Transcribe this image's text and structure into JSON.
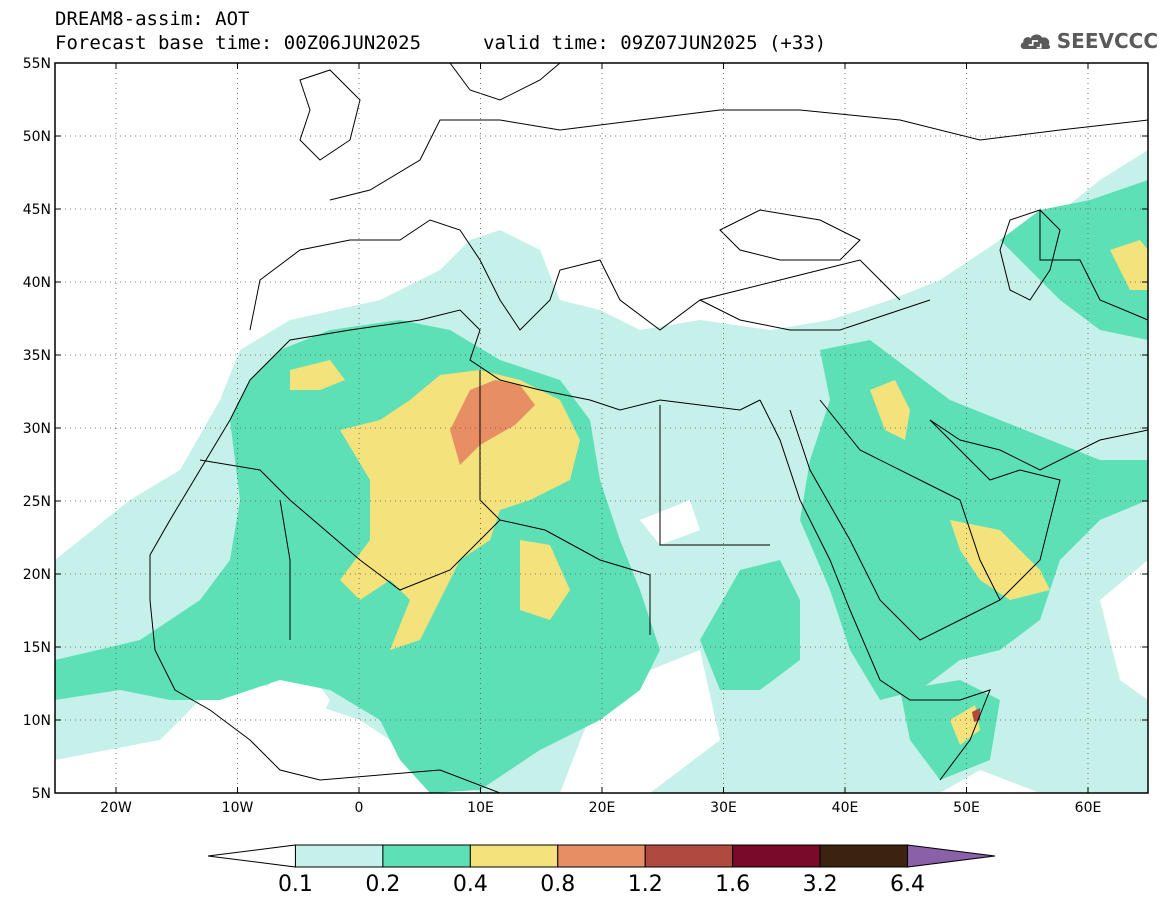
{
  "header": {
    "line1": "DREAM8-assim: AOT",
    "line2": "Forecast base time: 00Z06JUN2025",
    "valid": "valid time: 09Z07JUN2025 (+33)",
    "logo_text": "SEEVCCC"
  },
  "axes": {
    "lat_labels": [
      "55N",
      "50N",
      "45N",
      "40N",
      "35N",
      "30N",
      "25N",
      "20N",
      "15N",
      "10N",
      "5N"
    ],
    "lon_labels": [
      "20W",
      "10W",
      "0",
      "10E",
      "20E",
      "30E",
      "40E",
      "50E",
      "60E"
    ]
  },
  "colorbar": {
    "labels": [
      "0.1",
      "0.2",
      "0.4",
      "0.8",
      "1.2",
      "1.6",
      "3.2",
      "6.4"
    ],
    "colors": [
      "#ffffff",
      "#c6f1ea",
      "#5ee0b6",
      "#f4e27c",
      "#e88e64",
      "#b04a3e",
      "#7a0a2a",
      "#3a2410",
      "#8a60a8"
    ]
  },
  "palette": {
    "land_line": "#000000",
    "aot_0.1": "#c6f1ea",
    "aot_0.2": "#5ee0b6",
    "aot_0.4": "#f4e27c",
    "aot_0.8": "#e88e64"
  }
}
